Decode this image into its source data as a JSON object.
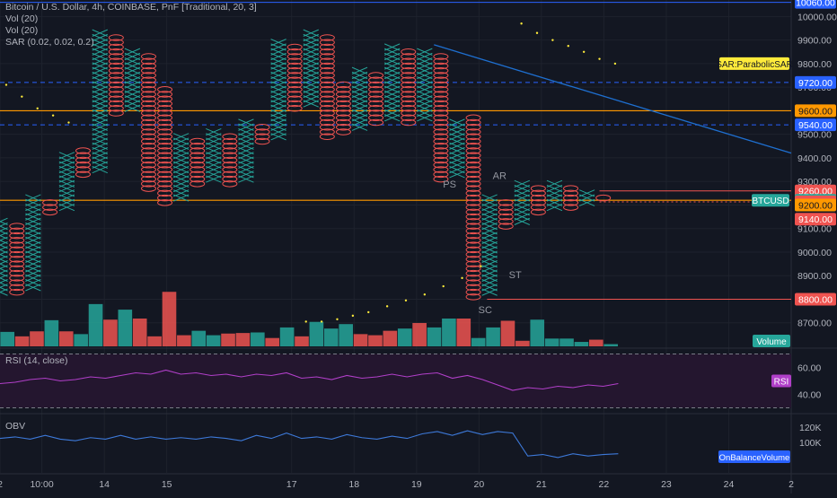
{
  "header": {
    "title": "Bitcoin / U.S. Dollar, 4h, COINBASE, PnF [Traditional, 20, 3]",
    "indicators": [
      "Vol (20)",
      "Vol (20)",
      "SAR (0.02, 0.02, 0.2)"
    ]
  },
  "colors": {
    "background": "#131722",
    "up": "#26a69a",
    "down": "#ef5350",
    "orange": "#ff9800",
    "blue": "#2962ff",
    "trend": "#1e6fd0",
    "sar": "#ffeb3b",
    "rsi": "#b13fc9",
    "rsi_band": "#24162f",
    "obv": "#3d79d9",
    "axis_text": "#b2b5be"
  },
  "chart_data": [
    {
      "type": "point-and-figure",
      "symbol": "BTCUSD",
      "x_ticks": [
        {
          "label": "2",
          "day": 12.0
        },
        {
          "label": "10:00",
          "day": 12.67
        },
        {
          "label": "14",
          "day": 13.67
        },
        {
          "label": "15",
          "day": 14.67
        },
        {
          "label": "17",
          "day": 16.67
        },
        {
          "label": "18",
          "day": 17.67
        },
        {
          "label": "19",
          "day": 18.67
        },
        {
          "label": "20",
          "day": 19.67
        },
        {
          "label": "21",
          "day": 20.67
        },
        {
          "label": "22",
          "day": 21.67
        },
        {
          "label": "23",
          "day": 22.67
        },
        {
          "label": "24",
          "day": 23.67
        },
        {
          "label": "2",
          "day": 24.67
        }
      ],
      "x_range": [
        12.0,
        24.67
      ],
      "y_axis": {
        "ylim": [
          8600,
          10070
        ],
        "ticks": [
          8700,
          8800,
          8900,
          9000,
          9100,
          9200,
          9300,
          9400,
          9500,
          9600,
          9700,
          9800,
          9900,
          10000
        ],
        "tick_labels": [
          "8700.00",
          "8800.00",
          "8900.00",
          "9000.00",
          "9100.00",
          "9200.00",
          "9300.00",
          "9400.00",
          "9500.00",
          "9600.00",
          "9700.00",
          "9800.00",
          "9900.00",
          "10000.00"
        ]
      },
      "columns": [
        {
          "day": 12.0,
          "type": "X",
          "low": 8820,
          "high": 9140
        },
        {
          "day": 12.27,
          "type": "O",
          "low": 8820,
          "high": 9120
        },
        {
          "day": 12.53,
          "type": "X",
          "low": 8840,
          "high": 9240
        },
        {
          "day": 12.8,
          "type": "O",
          "low": 9160,
          "high": 9220
        },
        {
          "day": 13.07,
          "type": "X",
          "low": 9180,
          "high": 9420
        },
        {
          "day": 13.33,
          "type": "O",
          "low": 9320,
          "high": 9440
        },
        {
          "day": 13.6,
          "type": "X",
          "low": 9340,
          "high": 9940
        },
        {
          "day": 13.86,
          "type": "O",
          "low": 9580,
          "high": 9920
        },
        {
          "day": 14.12,
          "type": "X",
          "low": 9600,
          "high": 9860
        },
        {
          "day": 14.38,
          "type": "O",
          "low": 9260,
          "high": 9840
        },
        {
          "day": 14.64,
          "type": "O",
          "low": 9200,
          "high": 9700
        },
        {
          "day": 14.9,
          "type": "X",
          "low": 9220,
          "high": 9500
        },
        {
          "day": 15.16,
          "type": "O",
          "low": 9280,
          "high": 9480
        },
        {
          "day": 15.42,
          "type": "X",
          "low": 9300,
          "high": 9520
        },
        {
          "day": 15.68,
          "type": "O",
          "low": 9280,
          "high": 9500
        },
        {
          "day": 15.94,
          "type": "X",
          "low": 9300,
          "high": 9560
        },
        {
          "day": 16.2,
          "type": "O",
          "low": 9460,
          "high": 9540
        },
        {
          "day": 16.46,
          "type": "X",
          "low": 9480,
          "high": 9900
        },
        {
          "day": 16.72,
          "type": "O",
          "low": 9600,
          "high": 9880
        },
        {
          "day": 16.98,
          "type": "X",
          "low": 9620,
          "high": 9940
        },
        {
          "day": 17.24,
          "type": "O",
          "low": 9480,
          "high": 9920
        },
        {
          "day": 17.5,
          "type": "O",
          "low": 9500,
          "high": 9720
        },
        {
          "day": 17.76,
          "type": "X",
          "low": 9520,
          "high": 9780
        },
        {
          "day": 18.02,
          "type": "O",
          "low": 9540,
          "high": 9760
        },
        {
          "day": 18.28,
          "type": "X",
          "low": 9560,
          "high": 9880
        },
        {
          "day": 18.54,
          "type": "O",
          "low": 9540,
          "high": 9860
        },
        {
          "day": 18.8,
          "type": "X",
          "low": 9560,
          "high": 9860
        },
        {
          "day": 19.06,
          "type": "O",
          "low": 9300,
          "high": 9840
        },
        {
          "day": 19.32,
          "type": "X",
          "low": 9320,
          "high": 9560
        },
        {
          "day": 19.58,
          "type": "O",
          "low": 8800,
          "high": 9580
        },
        {
          "day": 19.84,
          "type": "X",
          "low": 8820,
          "high": 9240
        },
        {
          "day": 20.1,
          "type": "O",
          "low": 9100,
          "high": 9220
        },
        {
          "day": 20.36,
          "type": "X",
          "low": 9120,
          "high": 9300
        },
        {
          "day": 20.62,
          "type": "O",
          "low": 9160,
          "high": 9280
        },
        {
          "day": 20.88,
          "type": "X",
          "low": 9180,
          "high": 9300
        },
        {
          "day": 21.14,
          "type": "O",
          "low": 9180,
          "high": 9280
        },
        {
          "day": 21.4,
          "type": "X",
          "low": 9200,
          "high": 9260
        },
        {
          "day": 21.66,
          "type": "O",
          "low": 9220,
          "high": 9240
        }
      ],
      "sar_points": [
        {
          "day": 12.1,
          "value": 9710
        },
        {
          "day": 12.35,
          "value": 9660
        },
        {
          "day": 12.6,
          "value": 9610
        },
        {
          "day": 12.85,
          "value": 9580
        },
        {
          "day": 13.1,
          "value": 9550
        },
        {
          "day": 16.9,
          "value": 8705
        },
        {
          "day": 17.15,
          "value": 8705
        },
        {
          "day": 17.4,
          "value": 8715
        },
        {
          "day": 17.65,
          "value": 8730
        },
        {
          "day": 17.9,
          "value": 8745
        },
        {
          "day": 18.2,
          "value": 8770
        },
        {
          "day": 18.5,
          "value": 8795
        },
        {
          "day": 18.8,
          "value": 8820
        },
        {
          "day": 19.1,
          "value": 8855
        },
        {
          "day": 19.4,
          "value": 8890
        },
        {
          "day": 19.7,
          "value": 8940
        },
        {
          "day": 20.35,
          "value": 9970
        },
        {
          "day": 20.6,
          "value": 9930
        },
        {
          "day": 20.85,
          "value": 9900
        },
        {
          "day": 21.1,
          "value": 9875
        },
        {
          "day": 21.35,
          "value": 9850
        },
        {
          "day": 21.6,
          "value": 9820
        },
        {
          "day": 21.85,
          "value": 9800
        }
      ],
      "trendline": {
        "from": {
          "day": 18.95,
          "value": 9880
        },
        "to": {
          "day": 24.67,
          "value": 9420
        }
      },
      "annotations": [
        {
          "text": "PS",
          "day": 19.2,
          "value": 9275
        },
        {
          "text": "AR",
          "day": 20.0,
          "value": 9310
        },
        {
          "text": "ST",
          "day": 20.25,
          "value": 8890
        },
        {
          "text": "SC",
          "day": 19.77,
          "value": 8740
        }
      ],
      "levels": [
        {
          "value": 10060,
          "label": "10060.00",
          "color": "#2962ff",
          "style": "solid"
        },
        {
          "value": 9720,
          "label": "9720.00",
          "color": "#2962ff",
          "style": "dashed"
        },
        {
          "value": 9600,
          "label": "9600.00",
          "color": "#ff9800",
          "style": "solid"
        },
        {
          "value": 9540,
          "label": "9540.00",
          "color": "#2962ff",
          "style": "dashed"
        },
        {
          "value": 9260,
          "label": "9260.00",
          "color": "#ef5350",
          "style": "solid",
          "from_day": 21.6
        },
        {
          "value": 9220,
          "label": "9220.00",
          "color": "#ff9800",
          "style": "solid"
        },
        {
          "value": 9213,
          "label": "9213.00",
          "color": "#ef5350",
          "style": "dotted",
          "from_day": 21.6
        },
        {
          "value": 9200,
          "label": "9200.00",
          "color": "#ff9800",
          "style": "none"
        },
        {
          "value": 9140,
          "label": "9140.00",
          "color": "#ef5350",
          "style": "none"
        },
        {
          "value": 8800,
          "label": "8800.00",
          "color": "#ef5350",
          "style": "solid",
          "from_day": 19.8
        }
      ],
      "side_tags": [
        {
          "text": "SAR:ParabolicSAR",
          "value": 9800
        },
        {
          "text": "BTCUSD",
          "value": 9220
        }
      ]
    },
    {
      "type": "bar",
      "name": "Volume",
      "ylim": [
        0,
        1
      ],
      "values": [
        0.26,
        0.18,
        0.27,
        0.47,
        0.27,
        0.22,
        0.76,
        0.48,
        0.66,
        0.5,
        0.18,
        0.98,
        0.2,
        0.28,
        0.2,
        0.23,
        0.24,
        0.25,
        0.15,
        0.34,
        0.18,
        0.44,
        0.32,
        0.4,
        0.22,
        0.2,
        0.28,
        0.32,
        0.42,
        0.34,
        0.5,
        0.5,
        0.15,
        0.34,
        0.46,
        0.1,
        0.48,
        0.14,
        0.14,
        0.08,
        0.12,
        0.04
      ],
      "colors": [
        "up",
        "down",
        "down",
        "up",
        "down",
        "up",
        "up",
        "down",
        "up",
        "down",
        "down",
        "down",
        "down",
        "up",
        "up",
        "down",
        "down",
        "up",
        "down",
        "up",
        "down",
        "up",
        "up",
        "up",
        "down",
        "down",
        "down",
        "up",
        "down",
        "up",
        "up",
        "down",
        "up",
        "up",
        "down",
        "down",
        "up",
        "up",
        "up",
        "up",
        "down",
        "up"
      ]
    },
    {
      "type": "line",
      "name": "RSI (14, close)",
      "ylim": [
        27,
        73
      ],
      "bands": [
        30,
        70
      ],
      "values": [
        48,
        49,
        51,
        52,
        50,
        51,
        53,
        52,
        54,
        56,
        55,
        58,
        55,
        56,
        54,
        55,
        53,
        55,
        54,
        56,
        52,
        53,
        51,
        54,
        52,
        53,
        55,
        53,
        55,
        56,
        52,
        54,
        51,
        47,
        43,
        45,
        44,
        46,
        45,
        47,
        46,
        48
      ]
    },
    {
      "type": "line",
      "name": "OBV",
      "ylim": [
        60000,
        135000
      ],
      "values": [
        105000,
        107000,
        104000,
        109000,
        104000,
        102000,
        106000,
        104000,
        109000,
        104000,
        107000,
        104000,
        106000,
        104000,
        107000,
        105000,
        102000,
        109000,
        105000,
        112000,
        105000,
        107000,
        104000,
        110000,
        106000,
        104000,
        108000,
        105000,
        111000,
        114000,
        109000,
        115000,
        110000,
        114000,
        112000,
        82000,
        84000,
        80000,
        85000,
        82000,
        84000,
        85000
      ]
    }
  ],
  "volume_pane": {
    "tag": "Volume"
  },
  "rsi_pane": {
    "label": "RSI (14, close)",
    "tag": "RSI",
    "tick_labels": [
      "60.00",
      "40.00"
    ]
  },
  "obv_pane": {
    "label": "OBV",
    "tag": "OnBalanceVolume",
    "tick_labels": [
      "120K",
      "100K"
    ]
  }
}
